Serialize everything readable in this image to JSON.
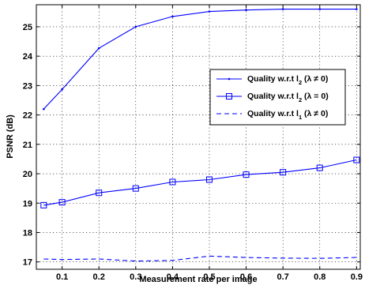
{
  "chart_data": {
    "type": "line",
    "xlabel": "Measurement rate per image",
    "ylabel": "PSNR (dB)",
    "xlim": [
      0.03,
      0.91
    ],
    "ylim": [
      16.75,
      25.75
    ],
    "xticks": [
      "0.1",
      "0.2",
      "0.3",
      "0.4",
      "0.5",
      "0.6",
      "0.7",
      "0.8",
      "0.9"
    ],
    "yticks": [
      "17",
      "18",
      "19",
      "20",
      "21",
      "22",
      "23",
      "24",
      "25"
    ],
    "grid": true,
    "legend_position": "right",
    "series": [
      {
        "name_parts": [
          "Quality w.r.t l",
          "2",
          " (λ ≠ 0)"
        ],
        "color": "#0000ff",
        "line_style": "solid",
        "marker": "dot",
        "x": [
          0.05,
          0.1,
          0.2,
          0.3,
          0.4,
          0.5,
          0.6,
          0.7,
          0.8,
          0.9
        ],
        "y": [
          22.2,
          22.87,
          24.27,
          25.0,
          25.35,
          25.52,
          25.57,
          25.6,
          25.6,
          25.6
        ]
      },
      {
        "name_parts": [
          "Quality w.r.t l",
          "2",
          " (λ = 0)"
        ],
        "color": "#0000ff",
        "line_style": "solid",
        "marker": "square",
        "x": [
          0.05,
          0.1,
          0.2,
          0.3,
          0.4,
          0.5,
          0.6,
          0.7,
          0.8,
          0.9
        ],
        "y": [
          18.93,
          19.03,
          19.35,
          19.5,
          19.72,
          19.8,
          19.97,
          20.05,
          20.2,
          20.47
        ]
      },
      {
        "name_parts": [
          "Quality w.r.t l",
          "1",
          " (λ ≠ 0)"
        ],
        "color": "#0000ff",
        "line_style": "dashed",
        "marker": "none",
        "x": [
          0.05,
          0.1,
          0.2,
          0.3,
          0.4,
          0.5,
          0.6,
          0.7,
          0.8,
          0.9
        ],
        "y": [
          17.1,
          17.08,
          17.1,
          17.03,
          17.05,
          17.2,
          17.15,
          17.13,
          17.12,
          17.15
        ]
      }
    ]
  }
}
